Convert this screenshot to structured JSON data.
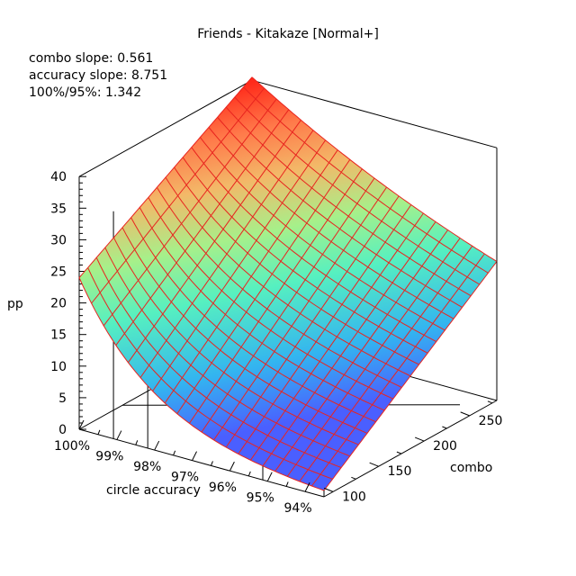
{
  "chart_data": {
    "type": "surface3d",
    "title": "Friends - Kitakaze [Normal+]",
    "annotations": [
      "combo slope: 0.561",
      "accuracy slope: 8.751",
      "100%/95%: 1.342"
    ],
    "zlabel": "pp",
    "xlabel": "circle accuracy",
    "ylabel": "combo",
    "z_ticks": [
      "0",
      "5",
      "10",
      "15",
      "20",
      "25",
      "30",
      "35",
      "40"
    ],
    "x_ticks": [
      "100%",
      "99%",
      "98%",
      "97%",
      "96%",
      "95%",
      "94%"
    ],
    "y_ticks": [
      "100",
      "150",
      "200",
      "250"
    ],
    "zlim": [
      0,
      40
    ],
    "accuracy_range": [
      100,
      93.5
    ],
    "combo_range": [
      90,
      280
    ],
    "corner_values": {
      "acc100_combo280": 40.5,
      "acc93_5_combo280": 22,
      "acc100_combo90": 24,
      "acc93_5_combo90": 1
    },
    "grid_lines": {
      "accuracy": 20,
      "combo": 20
    },
    "colormap": "rainbow",
    "colors": {
      "mesh": "#e8241f",
      "axes": "#000000"
    }
  }
}
